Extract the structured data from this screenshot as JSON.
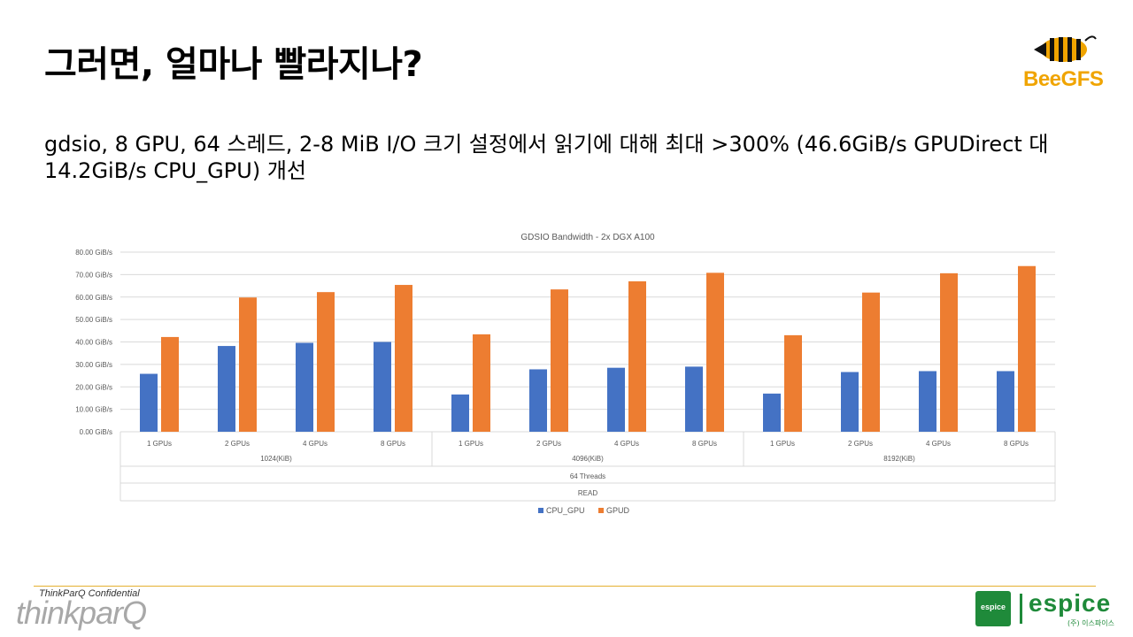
{
  "slide": {
    "title": "그러면, 얼마나 빨라지나?",
    "subtitle": "gdsio, 8 GPU, 64 스레드, 2-8 MiB I/O 크기 설정에서 읽기에 대해 최대 >300% (46.6GiB/s GPUDirect 대 14.2GiB/s CPU_GPU) 개선",
    "beegfs_logo_text": "BeeGFS",
    "confidential": "ThinkParQ Confidential",
    "thinkparq_logo": "thinkparQ",
    "espice_box": "espice",
    "espice_word": "espice",
    "espice_sub": "(주) 이스파이스",
    "colors": {
      "cpu": "#4472c4",
      "gpud": "#ed7d31",
      "brand_yellow": "#f0a400",
      "espice_green": "#1f8a3a"
    }
  },
  "chart_data": {
    "type": "bar",
    "title": "GDSIO Bandwidth - 2x DGX A100",
    "categories": [
      "1 GPUs",
      "2 GPUs",
      "4 GPUs",
      "8 GPUs",
      "1 GPUs",
      "2 GPUs",
      "4 GPUs",
      "8 GPUs",
      "1 GPUs",
      "2 GPUs",
      "4 GPUs",
      "8 GPUs"
    ],
    "groups": [
      "1024(KiB)",
      "4096(KiB)",
      "8192(KiB)"
    ],
    "group_level2": "64 Threads",
    "group_level3": "READ",
    "series": [
      {
        "name": "CPU_GPU",
        "values": [
          25.8,
          38.2,
          39.6,
          40.0,
          16.6,
          27.8,
          28.5,
          29.0,
          17.0,
          26.6,
          27.0,
          27.0
        ]
      },
      {
        "name": "GPUD",
        "values": [
          42.2,
          59.8,
          62.2,
          65.4,
          43.4,
          63.4,
          67.0,
          70.8,
          43.0,
          62.0,
          70.6,
          73.8
        ]
      }
    ],
    "yticks": [
      "0.00 GiB/s",
      "10.00 GiB/s",
      "20.00 GiB/s",
      "30.00 GiB/s",
      "40.00 GiB/s",
      "50.00 GiB/s",
      "60.00 GiB/s",
      "70.00 GiB/s",
      "80.00 GiB/s"
    ],
    "ylim": [
      0,
      80
    ],
    "grid": true,
    "legend": "bottom"
  }
}
